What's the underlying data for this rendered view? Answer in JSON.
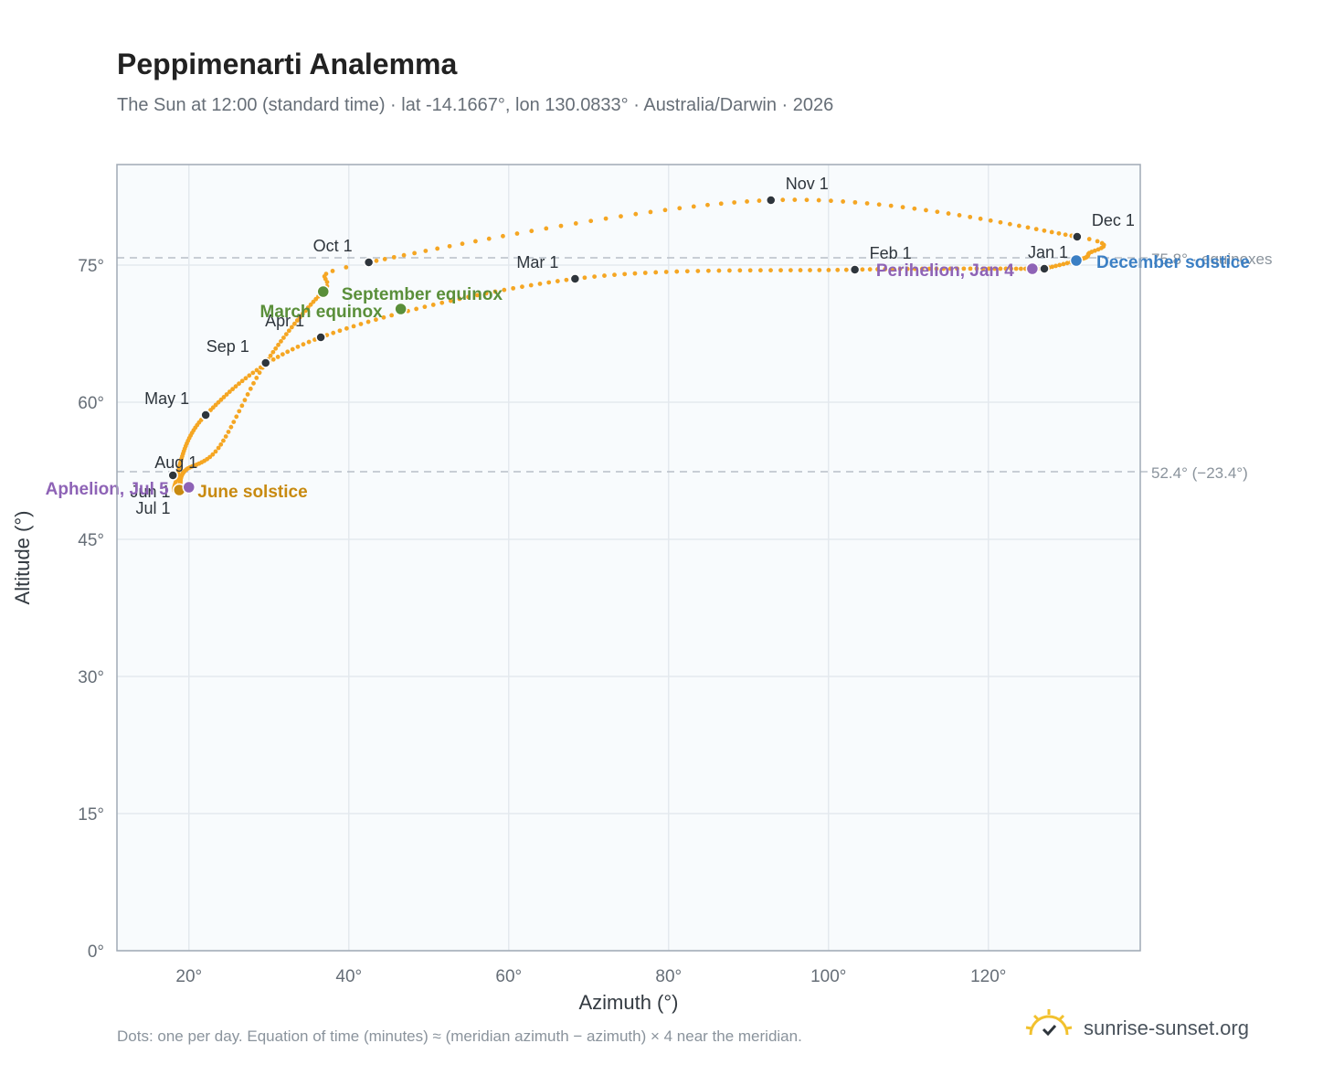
{
  "header": {
    "title": "Peppimenarti Analemma",
    "subtitle": "The Sun at 12:00 (standard time) · lat -14.1667°, lon 130.0833° · Australia/Darwin · 2026"
  },
  "footer": {
    "note": "Dots: one per day. Equation of time (minutes) ≈ (meridian azimuth − azimuth) × 4 near the meridian.",
    "brand": "sunrise-sunset.org",
    "brand_icon": "sun-check-icon"
  },
  "chart_data": {
    "type": "scatter",
    "xlabel": "Azimuth (°)",
    "ylabel": "Altitude (°)",
    "xlim": [
      11,
      139
    ],
    "ylim": [
      0,
      86
    ],
    "x_ticks": [
      20,
      40,
      60,
      80,
      100,
      120
    ],
    "x_tick_labels": [
      "20°",
      "40°",
      "60°",
      "80°",
      "100°",
      "120°"
    ],
    "y_ticks": [
      0,
      15,
      30,
      45,
      60,
      75
    ],
    "y_tick_labels": [
      "0°",
      "15°",
      "30°",
      "45°",
      "60°",
      "75°"
    ],
    "grid": true,
    "colors": {
      "path": "#f5a623",
      "month_marker": "#2e353c",
      "equinox": "#5a8f3a",
      "june_solstice": "#c88a10",
      "december_solstice": "#3b7fc4",
      "apsis": "#8e63b6",
      "reference_line": "#b8c0c8",
      "plot_background": "#f8fbfd",
      "grid": "#e4e9ee",
      "frame": "#a0aab5"
    },
    "reference_lines": [
      {
        "y": 75.8,
        "label": "75.8° · equinoxes"
      },
      {
        "y": 52.4,
        "label": "52.4° (−23.4°)"
      }
    ],
    "month_markers": [
      {
        "label": "Jan 1",
        "x": 127.0,
        "y": 74.6
      },
      {
        "label": "Feb 1",
        "x": 103.3,
        "y": 74.5
      },
      {
        "label": "Mar 1",
        "x": 68.3,
        "y": 73.5
      },
      {
        "label": "Apr 1",
        "x": 36.5,
        "y": 67.1
      },
      {
        "label": "May 1",
        "x": 22.1,
        "y": 58.6
      },
      {
        "label": "Jun 1",
        "x": 18.6,
        "y": 50.4
      },
      {
        "label": "Jul 1",
        "x": 18.6,
        "y": 50.4
      },
      {
        "label": "Aug 1",
        "x": 18.0,
        "y": 52.0
      },
      {
        "label": "Sep 1",
        "x": 29.6,
        "y": 64.3
      },
      {
        "label": "Oct 1",
        "x": 42.5,
        "y": 75.3
      },
      {
        "label": "Nov 1",
        "x": 92.8,
        "y": 82.1
      },
      {
        "label": "Dec 1",
        "x": 131.1,
        "y": 78.1
      }
    ],
    "events": [
      {
        "label": "March equinox",
        "x": 46.5,
        "y": 70.2,
        "kind": "equinox"
      },
      {
        "label": "September equinox",
        "x": 36.8,
        "y": 72.1,
        "kind": "equinox"
      },
      {
        "label": "June solstice",
        "x": 18.8,
        "y": 50.4,
        "kind": "june_solstice"
      },
      {
        "label": "December solstice",
        "x": 131.0,
        "y": 75.5,
        "kind": "december_solstice"
      },
      {
        "label": "Aphelion, Jul 5",
        "x": 20.0,
        "y": 50.7,
        "kind": "apsis"
      },
      {
        "label": "Perihelion, Jan 4",
        "x": 125.5,
        "y": 74.6,
        "kind": "apsis"
      }
    ]
  }
}
